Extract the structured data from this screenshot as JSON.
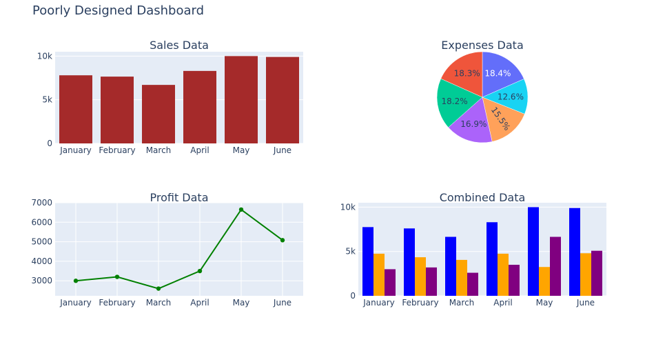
{
  "page": {
    "title": "Poorly Designed Dashboard"
  },
  "colors": {
    "plot_bg": "#e5ecf6",
    "grid": "#ffffff",
    "text": "#2a3f5f",
    "sales_bar": "#a52a2a",
    "profit_line": "#008000"
  },
  "chart_data": [
    {
      "type": "bar",
      "title": "Sales Data",
      "categories": [
        "January",
        "February",
        "March",
        "April",
        "May",
        "June"
      ],
      "values": [
        7800,
        7650,
        6700,
        8300,
        10000,
        9900
      ],
      "ylim": [
        0,
        10500
      ],
      "yticks": [
        0,
        5000,
        10000
      ],
      "ytick_labels": [
        "0",
        "5k",
        "10k"
      ],
      "grid": "horizontal",
      "color": "#a52a2a"
    },
    {
      "type": "pie",
      "title": "Expenses Data",
      "slices": [
        {
          "label": "18.4%",
          "value": 18.4,
          "color": "#636efa"
        },
        {
          "label": "12.6%",
          "value": 12.6,
          "color": "#00cc96"
        },
        {
          "label": "15.5%",
          "value": 15.5,
          "color": "#ab63fa"
        },
        {
          "label": "16.9%",
          "value": 16.9,
          "color": "#19d3f3"
        },
        {
          "label": "18.2%",
          "value": 18.2,
          "color": "#ef553b"
        },
        {
          "label": "18.3%",
          "value": 18.3,
          "color": "#ffa15a"
        }
      ],
      "draw_colors": [
        "#636efa",
        "#19d3f3",
        "#ffa15a",
        "#ab63fa",
        "#00cc96",
        "#ef553b"
      ],
      "direction": "clockwise",
      "label_text_colors": [
        "#ffffff",
        "#2a3f5f",
        "#2a3f5f",
        "#2a3f5f",
        "#2a3f5f",
        "#2a3f5f"
      ]
    },
    {
      "type": "line",
      "title": "Profit Data",
      "categories": [
        "January",
        "February",
        "March",
        "April",
        "May",
        "June"
      ],
      "values": [
        3000,
        3200,
        2600,
        3500,
        6650,
        5080
      ],
      "ylim": [
        2230,
        7000
      ],
      "yticks": [
        3000,
        4000,
        5000,
        6000,
        7000
      ],
      "ytick_labels": [
        "3000",
        "4000",
        "5000",
        "6000",
        "7000"
      ],
      "grid": "both",
      "color": "#008000",
      "markers": true
    },
    {
      "type": "bar",
      "title": "Combined Data",
      "categories": [
        "January",
        "February",
        "March",
        "April",
        "May",
        "June"
      ],
      "series": [
        {
          "values": [
            7750,
            7600,
            6650,
            8300,
            10000,
            9900
          ],
          "color": "#0000ff"
        },
        {
          "values": [
            4750,
            4350,
            4050,
            4750,
            3250,
            4800
          ],
          "color": "#ffa500"
        },
        {
          "values": [
            3000,
            3200,
            2600,
            3500,
            6650,
            5080
          ],
          "color": "#800080"
        }
      ],
      "ylim": [
        0,
        10500
      ],
      "yticks": [
        0,
        5000,
        10000
      ],
      "ytick_labels": [
        "0",
        "5k",
        "10k"
      ],
      "grid": "horizontal"
    }
  ]
}
